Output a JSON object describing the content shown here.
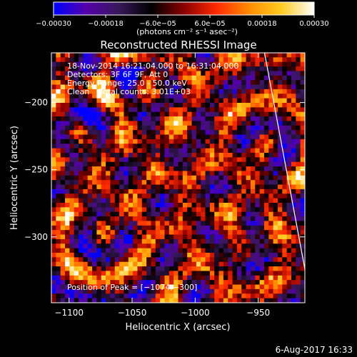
{
  "colors": {
    "background": "#000000",
    "limb_line": "#ffffff",
    "colormap": [
      "#0000ff",
      "#5500aa",
      "#38185a",
      "#000000",
      "#8a0000",
      "#ff2a00",
      "#ff8c00",
      "#ffcc22",
      "#ffffff"
    ]
  },
  "colorbar": {
    "tick_labels": [
      "−0.00030",
      "−0.00018",
      "−6.0e−05",
      "6.0e−05",
      "0.00018",
      "0.00030"
    ],
    "units_label": "(photons cm⁻² s⁻¹ asec⁻²)",
    "range": [
      -0.0003,
      0.0003
    ]
  },
  "chart_data": {
    "type": "heatmap",
    "title": "Reconstructed RHESSI Image",
    "xlabel": "Heliocentric X (arcsec)",
    "ylabel": "Heliocentric Y (arcsec)",
    "xlim": [
      -1114,
      -913
    ],
    "ylim": [
      -349,
      -163
    ],
    "x_ticks": [
      -1100,
      -1050,
      -1000,
      -950
    ],
    "y_ticks": [
      -200,
      -250,
      -300
    ],
    "x_tick_labels": [
      "−1100",
      "−1050",
      "−1000",
      "−950"
    ],
    "y_tick_labels": [
      "−200",
      "−250",
      "−300"
    ],
    "grid": false,
    "peak": [
      -1074,
      -300
    ],
    "limb_line": [
      [
        -945,
        -163
      ],
      [
        -913,
        -324
      ]
    ],
    "info": {
      "time": "18-Nov-2014 16:21:04.000 to 16:31:04.000",
      "detectors": "Detectors: 3F 6F 9F, Att 0",
      "energy": "Energy Range: 25.0 - 50.0 keV",
      "method": "Clean    Total counts: 3.01E+03",
      "peak_text": "Position of Peak = [−1074,−300]"
    }
  },
  "footer": {
    "date": "6-Aug-2017 16:33"
  }
}
